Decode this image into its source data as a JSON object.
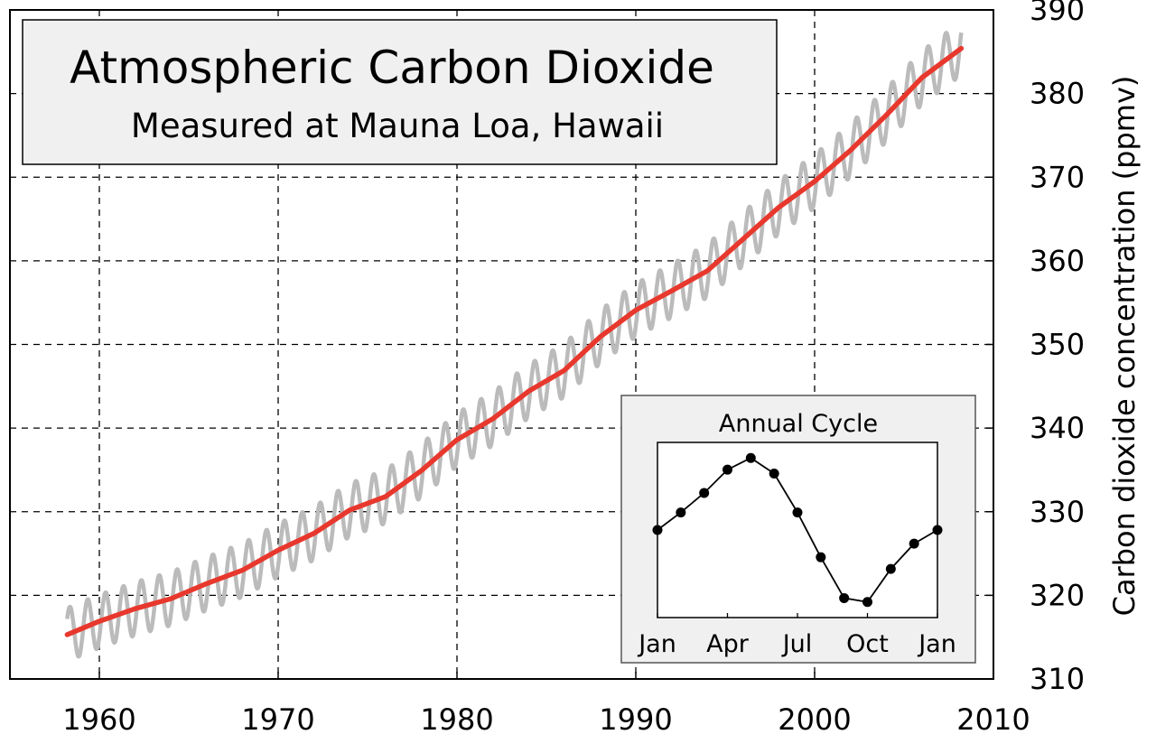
{
  "chart_data": [
    {
      "type": "line",
      "title": "Atmospheric Carbon Dioxide",
      "subtitle": "Measured at Mauna Loa, Hawaii",
      "xlabel": "",
      "ylabel": "Carbon dioxide concentration (ppmv)",
      "xlim": [
        1955,
        2010
      ],
      "ylim": [
        310,
        390
      ],
      "xticks": [
        1960,
        1970,
        1980,
        1990,
        2000,
        2010
      ],
      "yticks": [
        310,
        320,
        330,
        340,
        350,
        360,
        370,
        380,
        390
      ],
      "grid": true,
      "y_axis_side": "right",
      "series": [
        {
          "style": "seasonal-monthly",
          "color": "#bbbbbb",
          "seasonal_amplitude": 3.2,
          "x": [
            1958.2,
            1960,
            1962,
            1964,
            1966,
            1968,
            1970,
            1972,
            1974,
            1976,
            1978,
            1980,
            1982,
            1984,
            1986,
            1988,
            1990,
            1992,
            1994,
            1996,
            1998,
            2000,
            2002,
            2004,
            2006,
            2008.2
          ],
          "y": [
            315.3,
            316.9,
            318.4,
            319.6,
            321.4,
            323.0,
            325.4,
            327.4,
            330.2,
            331.8,
            334.9,
            338.6,
            341.1,
            344.4,
            346.9,
            350.9,
            354.1,
            356.4,
            358.8,
            362.6,
            366.4,
            369.5,
            373.2,
            377.4,
            381.9,
            385.4
          ]
        },
        {
          "style": "trend",
          "color": "#e8382d",
          "x": [
            1958.2,
            1960,
            1962,
            1964,
            1966,
            1968,
            1970,
            1972,
            1974,
            1976,
            1978,
            1980,
            1982,
            1984,
            1986,
            1988,
            1990,
            1992,
            1994,
            1996,
            1998,
            2000,
            2002,
            2004,
            2006,
            2008.2
          ],
          "y": [
            315.3,
            316.9,
            318.4,
            319.6,
            321.4,
            323.0,
            325.4,
            327.4,
            330.2,
            331.8,
            334.9,
            338.6,
            341.1,
            344.4,
            346.9,
            350.9,
            354.1,
            356.4,
            358.8,
            362.6,
            366.4,
            369.5,
            373.2,
            377.4,
            381.9,
            385.4
          ]
        }
      ]
    },
    {
      "type": "line",
      "title": "Annual Cycle",
      "placement": "bottom-right-inset",
      "xticks": [
        "Jan",
        "Apr",
        "Jul",
        "Oct",
        "Jan"
      ],
      "x": [
        0,
        1,
        2,
        3,
        4,
        5,
        6,
        7,
        8,
        9,
        10,
        11,
        12
      ],
      "values": [
        1.0,
        1.9,
        2.9,
        4.1,
        4.7,
        3.9,
        1.9,
        -0.4,
        -2.5,
        -2.7,
        -1.0,
        0.3,
        1.0
      ],
      "ylim": [
        -3.5,
        5.5
      ],
      "marker_color": "#000000"
    }
  ]
}
